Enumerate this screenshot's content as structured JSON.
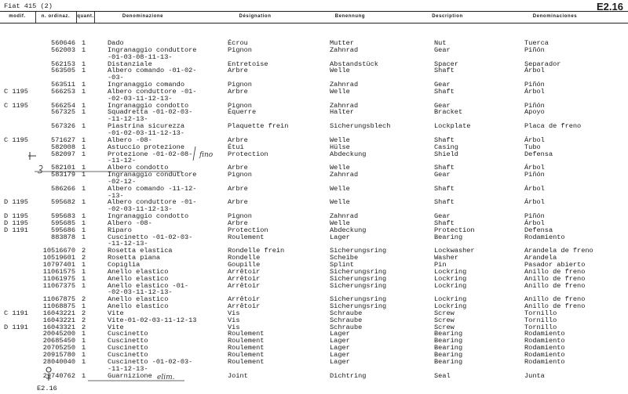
{
  "title": "Fiat 415 (2)",
  "page_number": "E2.16",
  "footer": "E2.16",
  "headers": {
    "modif": "modif.",
    "number": "n. ordinaz.",
    "qty": "quant.",
    "it": "Denominazione",
    "fr": "Désignation",
    "de": "Benennung",
    "en": "Description",
    "es": "Denominaciones"
  },
  "rows": [
    {
      "mod": "",
      "num": "560646",
      "qty": "1",
      "it": "Dado",
      "fr": "Écrou",
      "de": "Mutter",
      "en": "Nut",
      "es": "Tuerca"
    },
    {
      "mod": "",
      "num": "562003",
      "qty": "1",
      "it": "Ingranaggio conduttore",
      "cont": "-01-03-08-11-13-",
      "fr": "Pignon",
      "de": "Zahnrad",
      "en": "Gear",
      "es": "Piñón"
    },
    {
      "mod": "",
      "num": "562153",
      "qty": "1",
      "it": "Distanziale",
      "fr": "Entretoise",
      "de": "Abstandstück",
      "en": "Spacer",
      "es": "Separador"
    },
    {
      "mod": "",
      "num": "563505",
      "qty": "1",
      "it": "Albero comando -01-02-",
      "cont": "-03-",
      "fr": "Arbre",
      "de": "Welle",
      "en": "Shaft",
      "es": "Árbol"
    },
    {
      "mod": "",
      "num": "563511",
      "qty": "1",
      "it": "Ingranaggio comando",
      "fr": "Pignon",
      "de": "Zahnrad",
      "en": "Gear",
      "es": "Piñón"
    },
    {
      "mod": "C 1195",
      "num": "566253",
      "qty": "1",
      "it": "Albero conduttore -01-",
      "cont": "-02-03-11-12-13-",
      "fr": "Arbre",
      "de": "Welle",
      "en": "Shaft",
      "es": "Árbol"
    },
    {
      "mod": "C 1195",
      "num": "566254",
      "qty": "1",
      "it": "Ingranaggio condotto",
      "fr": "Pignon",
      "de": "Zahnrad",
      "en": "Gear",
      "es": "Piñón"
    },
    {
      "mod": "",
      "num": "567325",
      "qty": "1",
      "it": "Squadretta -01-02-03-",
      "cont": "-11-12-13-",
      "fr": "Équerre",
      "de": "Halter",
      "en": "Bracket",
      "es": "Apoyo"
    },
    {
      "mod": "",
      "num": "567326",
      "qty": "1",
      "it": "Piastrina sicurezza",
      "cont": "-01-02-03-11-12-13-",
      "fr": "Plaquette frein",
      "de": "Sicherungsblech",
      "en": "Lockplate",
      "es": "Placa de freno"
    },
    {
      "mod": "C 1195",
      "num": "571627",
      "qty": "1",
      "it": "Albero -08-",
      "fr": "Arbre",
      "de": "Welle",
      "en": "Shaft",
      "es": "Árbol"
    },
    {
      "mod": "",
      "num": "582008",
      "qty": "1",
      "it": "Astuccio protezione",
      "fr": "Étui",
      "de": "Hülse",
      "en": "Casing",
      "es": "Tubo"
    },
    {
      "mod": "",
      "num": "582097",
      "qty": "1",
      "it": "Protezione -01-02-08-",
      "cont": "-11-12-",
      "fr": "Protection",
      "de": "Abdeckung",
      "en": "Shield",
      "es": "Defensa"
    },
    {
      "mod": "",
      "num": "582101",
      "qty": "1",
      "it": "Albero condotto",
      "fr": "Arbre",
      "de": "Welle",
      "en": "Shaft",
      "es": "Árbol"
    },
    {
      "mod": "",
      "num": "583179",
      "qty": "1",
      "it": "Ingranaggio conduttore",
      "cont": "-02-12-",
      "fr": "Pignon",
      "de": "Zahnrad",
      "en": "Gear",
      "es": "Piñón"
    },
    {
      "mod": "",
      "num": "586266",
      "qty": "1",
      "it": "Albero comando -11-12-",
      "cont": "-13-",
      "fr": "Arbre",
      "de": "Welle",
      "en": "Shaft",
      "es": "Árbol"
    },
    {
      "mod": "D 1195",
      "num": "595682",
      "qty": "1",
      "it": "Albero conduttore -01-",
      "cont": "-02-03-11-12-13-",
      "fr": "Arbre",
      "de": "Welle",
      "en": "Shaft",
      "es": "Árbol"
    },
    {
      "mod": "D 1195",
      "num": "595683",
      "qty": "1",
      "it": "Ingranaggio condotto",
      "fr": "Pignon",
      "de": "Zahnrad",
      "en": "Gear",
      "es": "Piñón"
    },
    {
      "mod": "D 1195",
      "num": "595685",
      "qty": "1",
      "it": "Albero -08-",
      "fr": "Arbre",
      "de": "Welle",
      "en": "Shaft",
      "es": "Árbol"
    },
    {
      "mod": "D 1191",
      "num": "595686",
      "qty": "1",
      "it": "Riparo",
      "fr": "Protection",
      "de": "Abdeckung",
      "en": "Protection",
      "es": "Defensa"
    },
    {
      "mod": "",
      "num": "883878",
      "qty": "1",
      "it": "Cuscinetto -01-02-03-",
      "cont": "-11-12-13-",
      "fr": "Roulement",
      "de": "Lager",
      "en": "Bearing",
      "es": "Rodamiento"
    },
    {
      "mod": "",
      "num": "10516670",
      "qty": "2",
      "it": "Rosetta elastica",
      "fr": "Rondelle frein",
      "de": "Sicherungsring",
      "en": "Lockwasher",
      "es": "Arandela de freno"
    },
    {
      "mod": "",
      "num": "10519601",
      "qty": "2",
      "it": "Rosetta piana",
      "fr": "Rondelle",
      "de": "Scheibe",
      "en": "Washer",
      "es": "Arandela"
    },
    {
      "mod": "",
      "num": "10797401",
      "qty": "1",
      "it": "Copiglia",
      "fr": "Goupille",
      "de": "Splint",
      "en": "Pin",
      "es": "Pasador abierto"
    },
    {
      "mod": "",
      "num": "11061575",
      "qty": "1",
      "it": "Anello elastico",
      "fr": "Arrêtoir",
      "de": "Sicherungsring",
      "en": "Lockring",
      "es": "Anillo de freno"
    },
    {
      "mod": "",
      "num": "11061975",
      "qty": "1",
      "it": "Anello elastico",
      "fr": "Arrêtoir",
      "de": "Sicherungsring",
      "en": "Lockring",
      "es": "Anillo de freno"
    },
    {
      "mod": "",
      "num": "11067375",
      "qty": "1",
      "it": "Anello elastico -01-",
      "cont": "-02-03-11-12-13-",
      "fr": "Arrêtoir",
      "de": "Sicherungsring",
      "en": "Lockring",
      "es": "Anillo de freno"
    },
    {
      "mod": "",
      "num": "11067875",
      "qty": "2",
      "it": "Anello elastico",
      "fr": "Arrêtoir",
      "de": "Sicherungsring",
      "en": "Lockring",
      "es": "Anillo de freno"
    },
    {
      "mod": "",
      "num": "11068875",
      "qty": "1",
      "it": "Anello elastico",
      "fr": "Arrêtoir",
      "de": "Sicherungsring",
      "en": "Lockring",
      "es": "Anillo de freno"
    },
    {
      "mod": "C 1191",
      "num": "16043221",
      "qty": "2",
      "it": "Vite",
      "fr": "Vis",
      "de": "Schraube",
      "en": "Screw",
      "es": "Tornillo"
    },
    {
      "mod": "",
      "num": "16043221",
      "qty": "2",
      "it": "Vite-01-02-03-11-12-13",
      "fr": "Vis",
      "de": "Schraube",
      "en": "Screw",
      "es": "Tornillo"
    },
    {
      "mod": "D 1191",
      "num": "16043321",
      "qty": "2",
      "it": "Vite",
      "fr": "Vis",
      "de": "Schraube",
      "en": "Screw",
      "es": "Tornillo"
    },
    {
      "mod": "",
      "num": "20045200",
      "qty": "1",
      "it": "Cuscinetto",
      "fr": "Roulement",
      "de": "Lager",
      "en": "Bearing",
      "es": "Rodamiento"
    },
    {
      "mod": "",
      "num": "20685450",
      "qty": "1",
      "it": "Cuscinetto",
      "fr": "Roulement",
      "de": "Lager",
      "en": "Bearing",
      "es": "Rodamiento"
    },
    {
      "mod": "",
      "num": "20705250",
      "qty": "1",
      "it": "Cuscinetto",
      "fr": "Roulement",
      "de": "Lager",
      "en": "Bearing",
      "es": "Rodamiento"
    },
    {
      "mod": "",
      "num": "20915780",
      "qty": "1",
      "it": "Cuscinetto",
      "fr": "Roulement",
      "de": "Lager",
      "en": "Bearing",
      "es": "Rodamiento"
    },
    {
      "mod": "",
      "num": "28040040",
      "qty": "1",
      "it": "Cuscinetto -01-02-03-",
      "cont": "-11-12-13-",
      "fr": "Roulement",
      "de": "Lager",
      "en": "Bearing",
      "es": "Rodamiento"
    },
    {
      "mod": "",
      "num": "29740762",
      "qty": "1",
      "it": "Guarnizione",
      "fr": "Joint",
      "de": "Dichtring",
      "en": "Seal",
      "es": "Junta"
    }
  ],
  "annotations": {
    "fino": "fino",
    "elim": "elim."
  }
}
